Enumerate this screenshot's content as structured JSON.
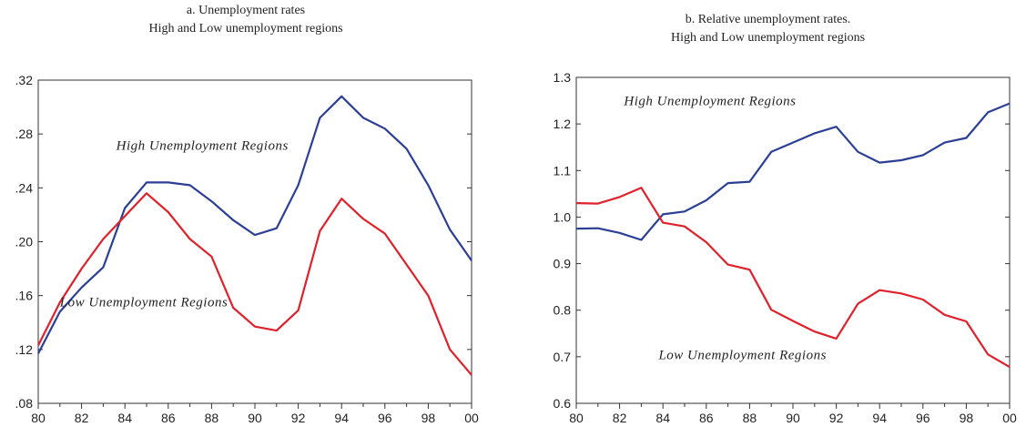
{
  "chart_data": [
    {
      "type": "line",
      "title": "a. Unemployment rates",
      "subtitle": "High and Low unemployment regions",
      "xlabel": "",
      "ylabel": "",
      "x": [
        1980,
        1981,
        1982,
        1983,
        1984,
        1985,
        1986,
        1987,
        1988,
        1989,
        1990,
        1991,
        1992,
        1993,
        1994,
        1995,
        1996,
        1997,
        1998,
        1999,
        2000
      ],
      "xlim": [
        1980,
        2000
      ],
      "ylim": [
        0.08,
        0.32
      ],
      "x_ticks": [
        1980,
        1982,
        1984,
        1986,
        1988,
        1990,
        1992,
        1994,
        1996,
        1998,
        2000
      ],
      "x_tick_labels": [
        "80",
        "82",
        "84",
        "86",
        "88",
        "90",
        "92",
        "94",
        "96",
        "98",
        "00"
      ],
      "y_ticks": [
        0.08,
        0.12,
        0.16,
        0.2,
        0.24,
        0.28,
        0.32
      ],
      "y_tick_labels": [
        ".08",
        ".12",
        ".16",
        ".20",
        ".24",
        ".28",
        ".32"
      ],
      "grid": false,
      "series": [
        {
          "name": "High Unemployment Regions",
          "color": "#2b3f95",
          "values": [
            0.117,
            0.148,
            0.166,
            0.181,
            0.225,
            0.244,
            0.244,
            0.242,
            0.23,
            0.216,
            0.205,
            0.21,
            0.242,
            0.292,
            0.308,
            0.292,
            0.284,
            0.269,
            0.242,
            0.209,
            0.186
          ]
        },
        {
          "name": "Low Unemployment Regions",
          "color": "#e0212b",
          "values": [
            0.123,
            0.155,
            0.18,
            0.202,
            0.219,
            0.236,
            0.222,
            0.202,
            0.189,
            0.151,
            0.137,
            0.134,
            0.149,
            0.208,
            0.232,
            0.217,
            0.206,
            0.183,
            0.16,
            0.12,
            0.101
          ]
        }
      ],
      "annotations": [
        {
          "text": "High Unemployment Regions",
          "near": "series-high"
        },
        {
          "text": "Low Unemployment Regions",
          "near": "series-low"
        }
      ]
    },
    {
      "type": "line",
      "title": "b. Relative unemployment rates.",
      "subtitle": "High and Low unemployment regions",
      "xlabel": "",
      "ylabel": "",
      "x": [
        1980,
        1981,
        1982,
        1983,
        1984,
        1985,
        1986,
        1987,
        1988,
        1989,
        1990,
        1991,
        1992,
        1993,
        1994,
        1995,
        1996,
        1997,
        1998,
        1999,
        2000
      ],
      "xlim": [
        1980,
        2000
      ],
      "ylim": [
        0.6,
        1.3
      ],
      "x_ticks": [
        1980,
        1982,
        1984,
        1986,
        1988,
        1990,
        1992,
        1994,
        1996,
        1998,
        2000
      ],
      "x_tick_labels": [
        "80",
        "82",
        "84",
        "86",
        "88",
        "90",
        "92",
        "94",
        "96",
        "98",
        "00"
      ],
      "y_ticks": [
        0.6,
        0.7,
        0.8,
        0.9,
        1.0,
        1.1,
        1.2,
        1.3
      ],
      "y_tick_labels": [
        "0.6",
        "0.7",
        "0.8",
        "0.9",
        "1.0",
        "1.1",
        "1.2",
        "1.3"
      ],
      "grid": false,
      "series": [
        {
          "name": "High Unemployment Regions",
          "color": "#2b3f95",
          "values": [
            0.975,
            0.976,
            0.966,
            0.951,
            1.006,
            1.012,
            1.036,
            1.073,
            1.076,
            1.14,
            1.16,
            1.18,
            1.194,
            1.14,
            1.117,
            1.122,
            1.133,
            1.16,
            1.17,
            1.225,
            1.244
          ]
        },
        {
          "name": "Low Unemployment Regions",
          "color": "#e0212b",
          "values": [
            1.03,
            1.029,
            1.043,
            1.063,
            0.988,
            0.98,
            0.946,
            0.898,
            0.887,
            0.801,
            0.777,
            0.754,
            0.739,
            0.814,
            0.843,
            0.836,
            0.823,
            0.79,
            0.776,
            0.705,
            0.678
          ]
        }
      ],
      "annotations": [
        {
          "text": "High Unemployment Regions",
          "near": "series-high"
        },
        {
          "text": "Low Unemployment Regions",
          "near": "series-low"
        }
      ]
    }
  ]
}
